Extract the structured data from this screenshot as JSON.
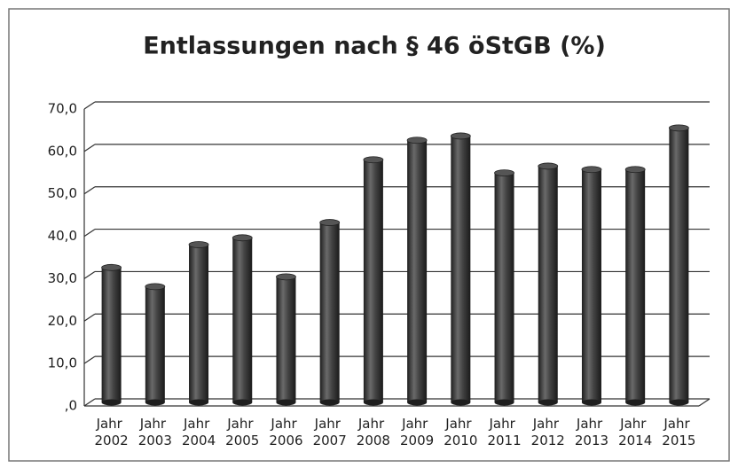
{
  "chart_data": {
    "type": "bar",
    "title": "Entlassungen nach § 46 öStGB (%)",
    "categories": [
      "Jahr 2002",
      "Jahr 2003",
      "Jahr 2004",
      "Jahr 2005",
      "Jahr 2006",
      "Jahr 2007",
      "Jahr 2008",
      "Jahr 2009",
      "Jahr 2010",
      "Jahr 2011",
      "Jahr 2012",
      "Jahr 2013",
      "Jahr 2014",
      "Jahr 2015"
    ],
    "values": [
      31.8,
      27.3,
      37.2,
      38.8,
      29.6,
      42.4,
      57.2,
      61.8,
      62.8,
      54.1,
      55.7,
      54.9,
      54.9,
      64.7
    ],
    "color": "#3a3a3a",
    "ylim": [
      0,
      70
    ],
    "yticks": [
      {
        "value": 0,
        "label": ",0"
      },
      {
        "value": 10,
        "label": "10,0"
      },
      {
        "value": 20,
        "label": "20,0"
      },
      {
        "value": 30,
        "label": "30,0"
      },
      {
        "value": 40,
        "label": "40,0"
      },
      {
        "value": 50,
        "label": "50,0"
      },
      {
        "value": 60,
        "label": "60,0"
      },
      {
        "value": 70,
        "label": "70,0"
      }
    ],
    "grid": true
  }
}
